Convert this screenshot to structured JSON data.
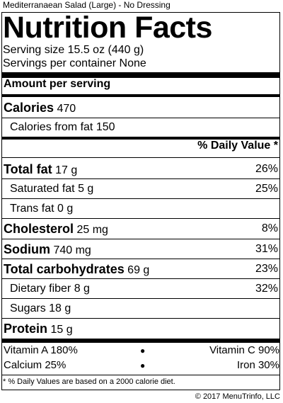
{
  "caption": "Mediterranaean Salad (Large) - No Dressing",
  "title": "Nutrition Facts",
  "serving_size": "Serving size 15.5 oz (440 g)",
  "servings_per_container": "Servings per container None",
  "amount_per_serving": "Amount per serving",
  "calories": {
    "label": "Calories",
    "value": "470"
  },
  "calories_from_fat": "Calories from fat 150",
  "daily_value_header": "% Daily Value *",
  "nutrients": [
    {
      "label": "Total fat",
      "amount": "17 g",
      "dv": "26%"
    },
    {
      "label": "Saturated fat",
      "amount": "5 g",
      "dv": "25%"
    },
    {
      "label": "Trans fat",
      "amount": "0 g",
      "dv": ""
    },
    {
      "label": "Cholesterol",
      "amount": "25 mg",
      "dv": "8%"
    },
    {
      "label": "Sodium",
      "amount": "740 mg",
      "dv": "31%"
    },
    {
      "label": "Total carbohydrates",
      "amount": "69 g",
      "dv": "23%"
    },
    {
      "label": "Dietary fiber",
      "amount": "8 g",
      "dv": "32%"
    },
    {
      "label": "Sugars",
      "amount": "18 g",
      "dv": ""
    },
    {
      "label": "Protein",
      "amount": "15 g",
      "dv": ""
    }
  ],
  "vitamins": [
    {
      "left": "Vitamin A 180%",
      "right": "Vitamin C 90%"
    },
    {
      "left": "Calcium 25%",
      "right": "Iron 30%"
    }
  ],
  "footnote": "* % Daily Values are based on a 2000 calorie diet.",
  "copyright": "© 2017 MenuTrinfo, LLC"
}
